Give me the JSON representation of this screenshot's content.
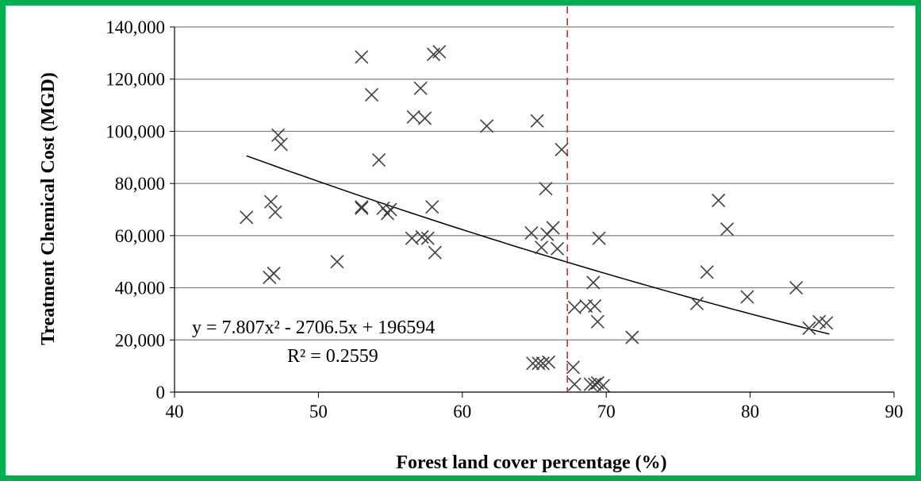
{
  "chart_data": {
    "type": "scatter",
    "xlabel": "Forest land cover percentage (%)",
    "ylabel": "Treatment Chemical Cost (MGD)",
    "xlim": [
      40,
      90
    ],
    "ylim": [
      0,
      140000
    ],
    "x_ticks": [
      40,
      50,
      60,
      70,
      80,
      90
    ],
    "y_ticks": [
      0,
      20000,
      40000,
      60000,
      80000,
      100000,
      120000,
      140000
    ],
    "x_tick_labels": [
      "40",
      "50",
      "60",
      "70",
      "80",
      "90"
    ],
    "y_tick_labels": [
      "0",
      "20,000",
      "40,000",
      "60,000",
      "80,000",
      "100,000",
      "120,000",
      "140,000"
    ],
    "grid": "horizontal",
    "marker": "x",
    "marker_color": "#404040",
    "points": [
      [
        45.0,
        67000
      ],
      [
        46.7,
        73000
      ],
      [
        47.0,
        69000
      ],
      [
        46.6,
        44000
      ],
      [
        46.9,
        45500
      ],
      [
        47.2,
        98500
      ],
      [
        47.4,
        95000
      ],
      [
        51.3,
        50000
      ],
      [
        53.0,
        128500
      ],
      [
        53.7,
        114000
      ],
      [
        54.2,
        89000
      ],
      [
        53.0,
        71000
      ],
      [
        53.0,
        70500
      ],
      [
        54.5,
        70500
      ],
      [
        55.0,
        70000
      ],
      [
        54.8,
        68500
      ],
      [
        56.5,
        59000
      ],
      [
        57.2,
        59500
      ],
      [
        57.6,
        59000
      ],
      [
        58.1,
        53500
      ],
      [
        56.6,
        105500
      ],
      [
        57.4,
        105000
      ],
      [
        57.1,
        116500
      ],
      [
        57.9,
        71000
      ],
      [
        58.0,
        129500
      ],
      [
        58.4,
        130500
      ],
      [
        61.7,
        102000
      ],
      [
        65.2,
        104000
      ],
      [
        66.9,
        93000
      ],
      [
        65.8,
        78000
      ],
      [
        64.8,
        61000
      ],
      [
        65.5,
        55500
      ],
      [
        65.9,
        60500
      ],
      [
        66.3,
        63000
      ],
      [
        66.6,
        55000
      ],
      [
        64.9,
        11000
      ],
      [
        65.3,
        11000
      ],
      [
        65.6,
        11000
      ],
      [
        66.0,
        11500
      ],
      [
        67.7,
        9500
      ],
      [
        67.8,
        3000
      ],
      [
        68.9,
        3000
      ],
      [
        69.2,
        3000
      ],
      [
        69.4,
        3500
      ],
      [
        69.8,
        2500
      ],
      [
        67.8,
        32500
      ],
      [
        68.6,
        33000
      ],
      [
        69.2,
        33000
      ],
      [
        69.1,
        42000
      ],
      [
        69.5,
        59000
      ],
      [
        69.4,
        27000
      ],
      [
        71.8,
        21000
      ],
      [
        76.3,
        34000
      ],
      [
        77.0,
        46000
      ],
      [
        77.8,
        73500
      ],
      [
        78.4,
        62500
      ],
      [
        79.8,
        36500
      ],
      [
        83.2,
        40000
      ],
      [
        84.1,
        24500
      ],
      [
        84.8,
        27000
      ],
      [
        85.3,
        26500
      ]
    ],
    "trendline": {
      "type": "polynomial",
      "a": 7.807,
      "b": -2706.5,
      "c": 196594,
      "x_range": [
        45,
        85.5
      ],
      "equation_text": "y = 7.807x² - 2706.5x + 196594",
      "r2_text": "R² = 0.2559"
    },
    "vline": {
      "x": 67.3,
      "color": "#e8202a",
      "style": "dashed"
    }
  }
}
